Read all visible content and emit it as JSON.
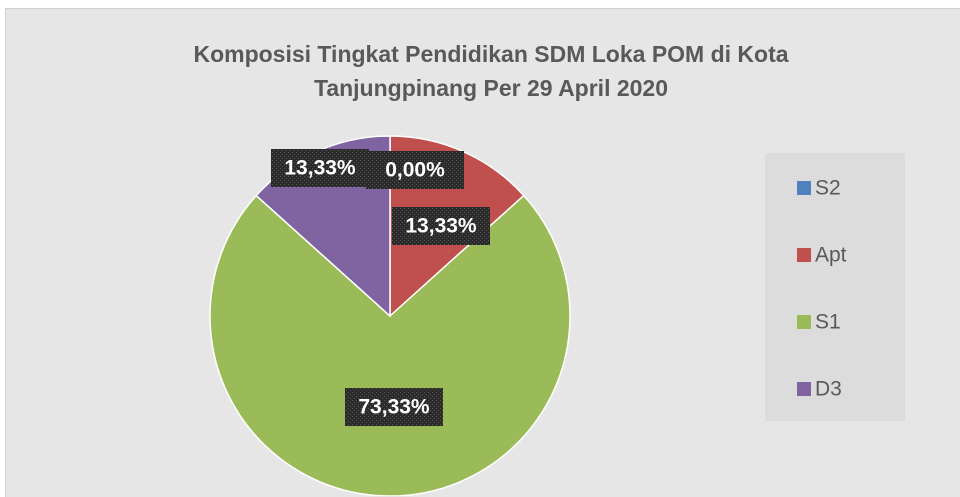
{
  "chart_data": {
    "type": "pie",
    "title": "Komposisi Tingkat Pendidikan SDM Loka POM di Kota Tanjungpinang Per 29 April 2020",
    "categories": [
      "S2",
      "Apt",
      "S1",
      "D3"
    ],
    "values": [
      0,
      13.33,
      73.33,
      13.33
    ],
    "value_labels": [
      "0,00%",
      "13,33%",
      "73,33%",
      "13,33%"
    ],
    "colors": [
      "#4f81bd",
      "#c0504d",
      "#9bbb59",
      "#8064a2"
    ],
    "legend": "right"
  }
}
